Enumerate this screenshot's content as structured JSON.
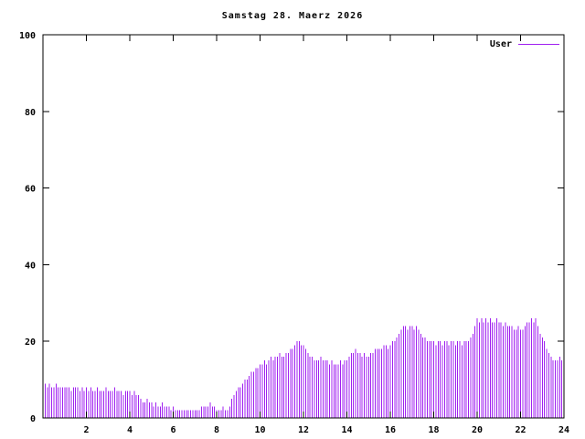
{
  "chart_data": {
    "type": "bar",
    "title": "Samstag 28. Maerz 2026",
    "legend": [
      "User"
    ],
    "series_name": "User",
    "color": "#a020f0",
    "axis_color": "#000000",
    "xlim": [
      0,
      24
    ],
    "ylim": [
      0,
      100
    ],
    "x_ticks": [
      2,
      4,
      6,
      8,
      10,
      12,
      14,
      16,
      18,
      20,
      22,
      24
    ],
    "y_ticks": [
      0,
      20,
      40,
      60,
      80,
      100
    ],
    "grid": false,
    "legend_position": "top-right-inside",
    "x_start": 0,
    "x_step": 0.1,
    "values": [
      10,
      9,
      8,
      9,
      8,
      8,
      9,
      8,
      8,
      8,
      8,
      8,
      8,
      7,
      8,
      8,
      8,
      7,
      8,
      7,
      8,
      7,
      8,
      7,
      7,
      8,
      7,
      7,
      7,
      8,
      7,
      7,
      7,
      8,
      7,
      7,
      7,
      6,
      7,
      7,
      7,
      6,
      7,
      6,
      6,
      5,
      4,
      4,
      5,
      4,
      4,
      3,
      4,
      3,
      3,
      4,
      3,
      3,
      3,
      2,
      3,
      2,
      2,
      2,
      2,
      2,
      2,
      2,
      2,
      2,
      2,
      2,
      2,
      3,
      3,
      3,
      3,
      4,
      3,
      3,
      2,
      2,
      2,
      3,
      2,
      2,
      3,
      5,
      6,
      7,
      8,
      8,
      9,
      10,
      10,
      11,
      12,
      12,
      13,
      13,
      14,
      14,
      15,
      14,
      15,
      16,
      15,
      16,
      16,
      17,
      16,
      16,
      17,
      17,
      18,
      18,
      19,
      20,
      20,
      19,
      19,
      18,
      17,
      16,
      16,
      15,
      15,
      15,
      16,
      15,
      15,
      15,
      14,
      15,
      14,
      14,
      14,
      15,
      14,
      15,
      15,
      16,
      17,
      17,
      18,
      17,
      17,
      16,
      17,
      16,
      16,
      17,
      17,
      18,
      18,
      18,
      18,
      19,
      19,
      18,
      19,
      20,
      20,
      21,
      22,
      23,
      24,
      24,
      23,
      24,
      24,
      23,
      24,
      23,
      22,
      21,
      21,
      20,
      20,
      20,
      20,
      19,
      20,
      20,
      19,
      20,
      20,
      19,
      20,
      20,
      19,
      20,
      20,
      19,
      20,
      20,
      20,
      21,
      22,
      24,
      26,
      25,
      26,
      25,
      26,
      25,
      26,
      25,
      25,
      26,
      25,
      25,
      24,
      25,
      24,
      24,
      24,
      23,
      23,
      24,
      23,
      23,
      24,
      25,
      25,
      26,
      25,
      26,
      24,
      22,
      21,
      20,
      18,
      17,
      16,
      15,
      15,
      15,
      16,
      15,
      15
    ]
  }
}
